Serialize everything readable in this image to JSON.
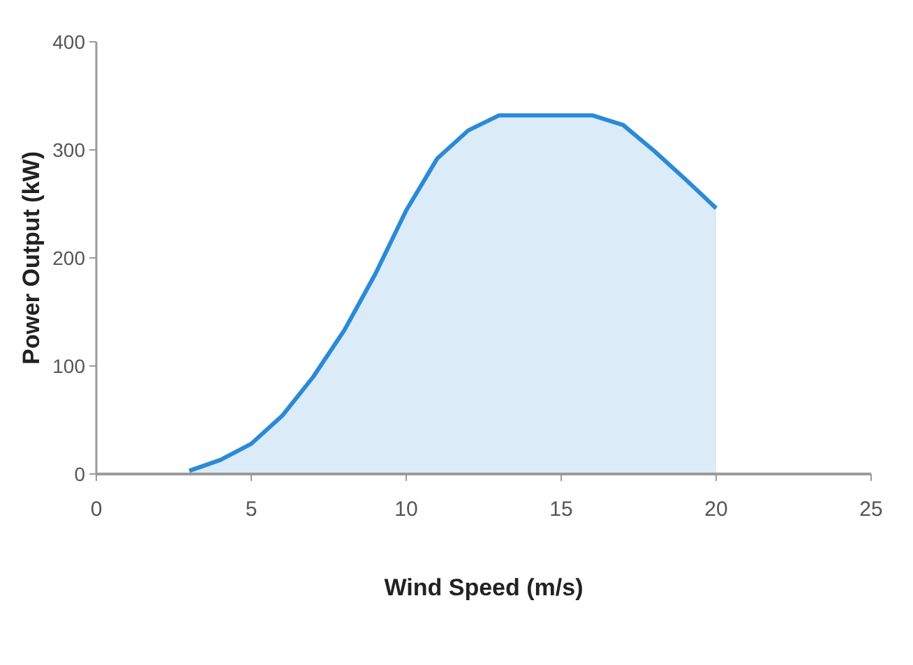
{
  "chart_data": {
    "type": "area",
    "xlabel": "Wind Speed (m/s)",
    "ylabel": "Power Output (kW)",
    "x": [
      3,
      4,
      5,
      6,
      7,
      8,
      9,
      10,
      11,
      12,
      13,
      14,
      15,
      16,
      17,
      18,
      19,
      20
    ],
    "series": [
      {
        "color": "#2b8ad6",
        "values": [
          3,
          13,
          28,
          54,
          90,
          133,
          185,
          244,
          292,
          318,
          332,
          332,
          332,
          332,
          323,
          299,
          273,
          246
        ]
      }
    ],
    "xlim": [
      0,
      25
    ],
    "xticks": [
      0,
      5,
      10,
      15,
      20,
      25
    ],
    "ylim": [
      0,
      400
    ],
    "yticks": [
      0,
      100,
      200,
      300,
      400
    ],
    "grid": false
  }
}
